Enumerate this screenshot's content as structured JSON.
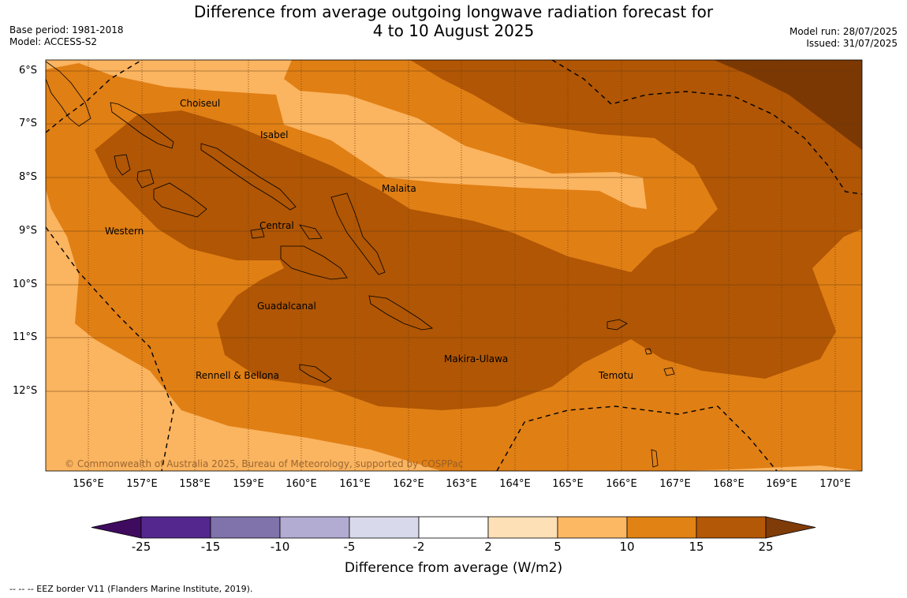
{
  "header": {
    "title_line1": "Difference from average outgoing longwave radiation forecast for",
    "title_line2": "4 to 10 August 2025",
    "base_period": "Base period: 1981-2018",
    "model": "Model: ACCESS-S2",
    "model_run": "Model run: 28/07/2025",
    "issued": "Issued: 31/07/2025"
  },
  "map": {
    "lat_labels": [
      "6°S",
      "7°S",
      "8°S",
      "9°S",
      "10°S",
      "11°S",
      "12°S"
    ],
    "lon_labels": [
      "156°E",
      "157°E",
      "158°E",
      "159°E",
      "160°E",
      "161°E",
      "162°E",
      "163°E",
      "164°E",
      "165°E",
      "166°E",
      "167°E",
      "168°E",
      "169°E",
      "170°E"
    ],
    "regions": [
      {
        "name": "Choiseul"
      },
      {
        "name": "Isabel"
      },
      {
        "name": "Malaita"
      },
      {
        "name": "Western"
      },
      {
        "name": "Central"
      },
      {
        "name": "Guadalcanal"
      },
      {
        "name": "Rennell & Bellona"
      },
      {
        "name": "Makira-Ulawa"
      },
      {
        "name": "Temotu"
      }
    ],
    "copyright": "© Commonwealth of Australia 2025, Bureau of Meteorology, supported by COSPPac",
    "colors": {
      "band_5_10": "#fbb45f",
      "band_10_15": "#e07f14",
      "band_15_25": "#b05604",
      "band_over_25": "#7b3803"
    }
  },
  "colorbar": {
    "ticks": [
      "-25",
      "-15",
      "-10",
      "-5",
      "-2",
      "2",
      "5",
      "10",
      "15",
      "25"
    ],
    "colors": [
      "#3f0b5e",
      "#54278f",
      "#8073ac",
      "#b2abd2",
      "#d8daeb",
      "#ffffff",
      "#fee0b6",
      "#fdb863",
      "#e08214",
      "#b35806",
      "#7f3b08"
    ],
    "label": "Difference from average (W/m2)"
  },
  "footnote": "--  --  -- EEZ border V11 (Flanders Marine Institute, 2019)."
}
